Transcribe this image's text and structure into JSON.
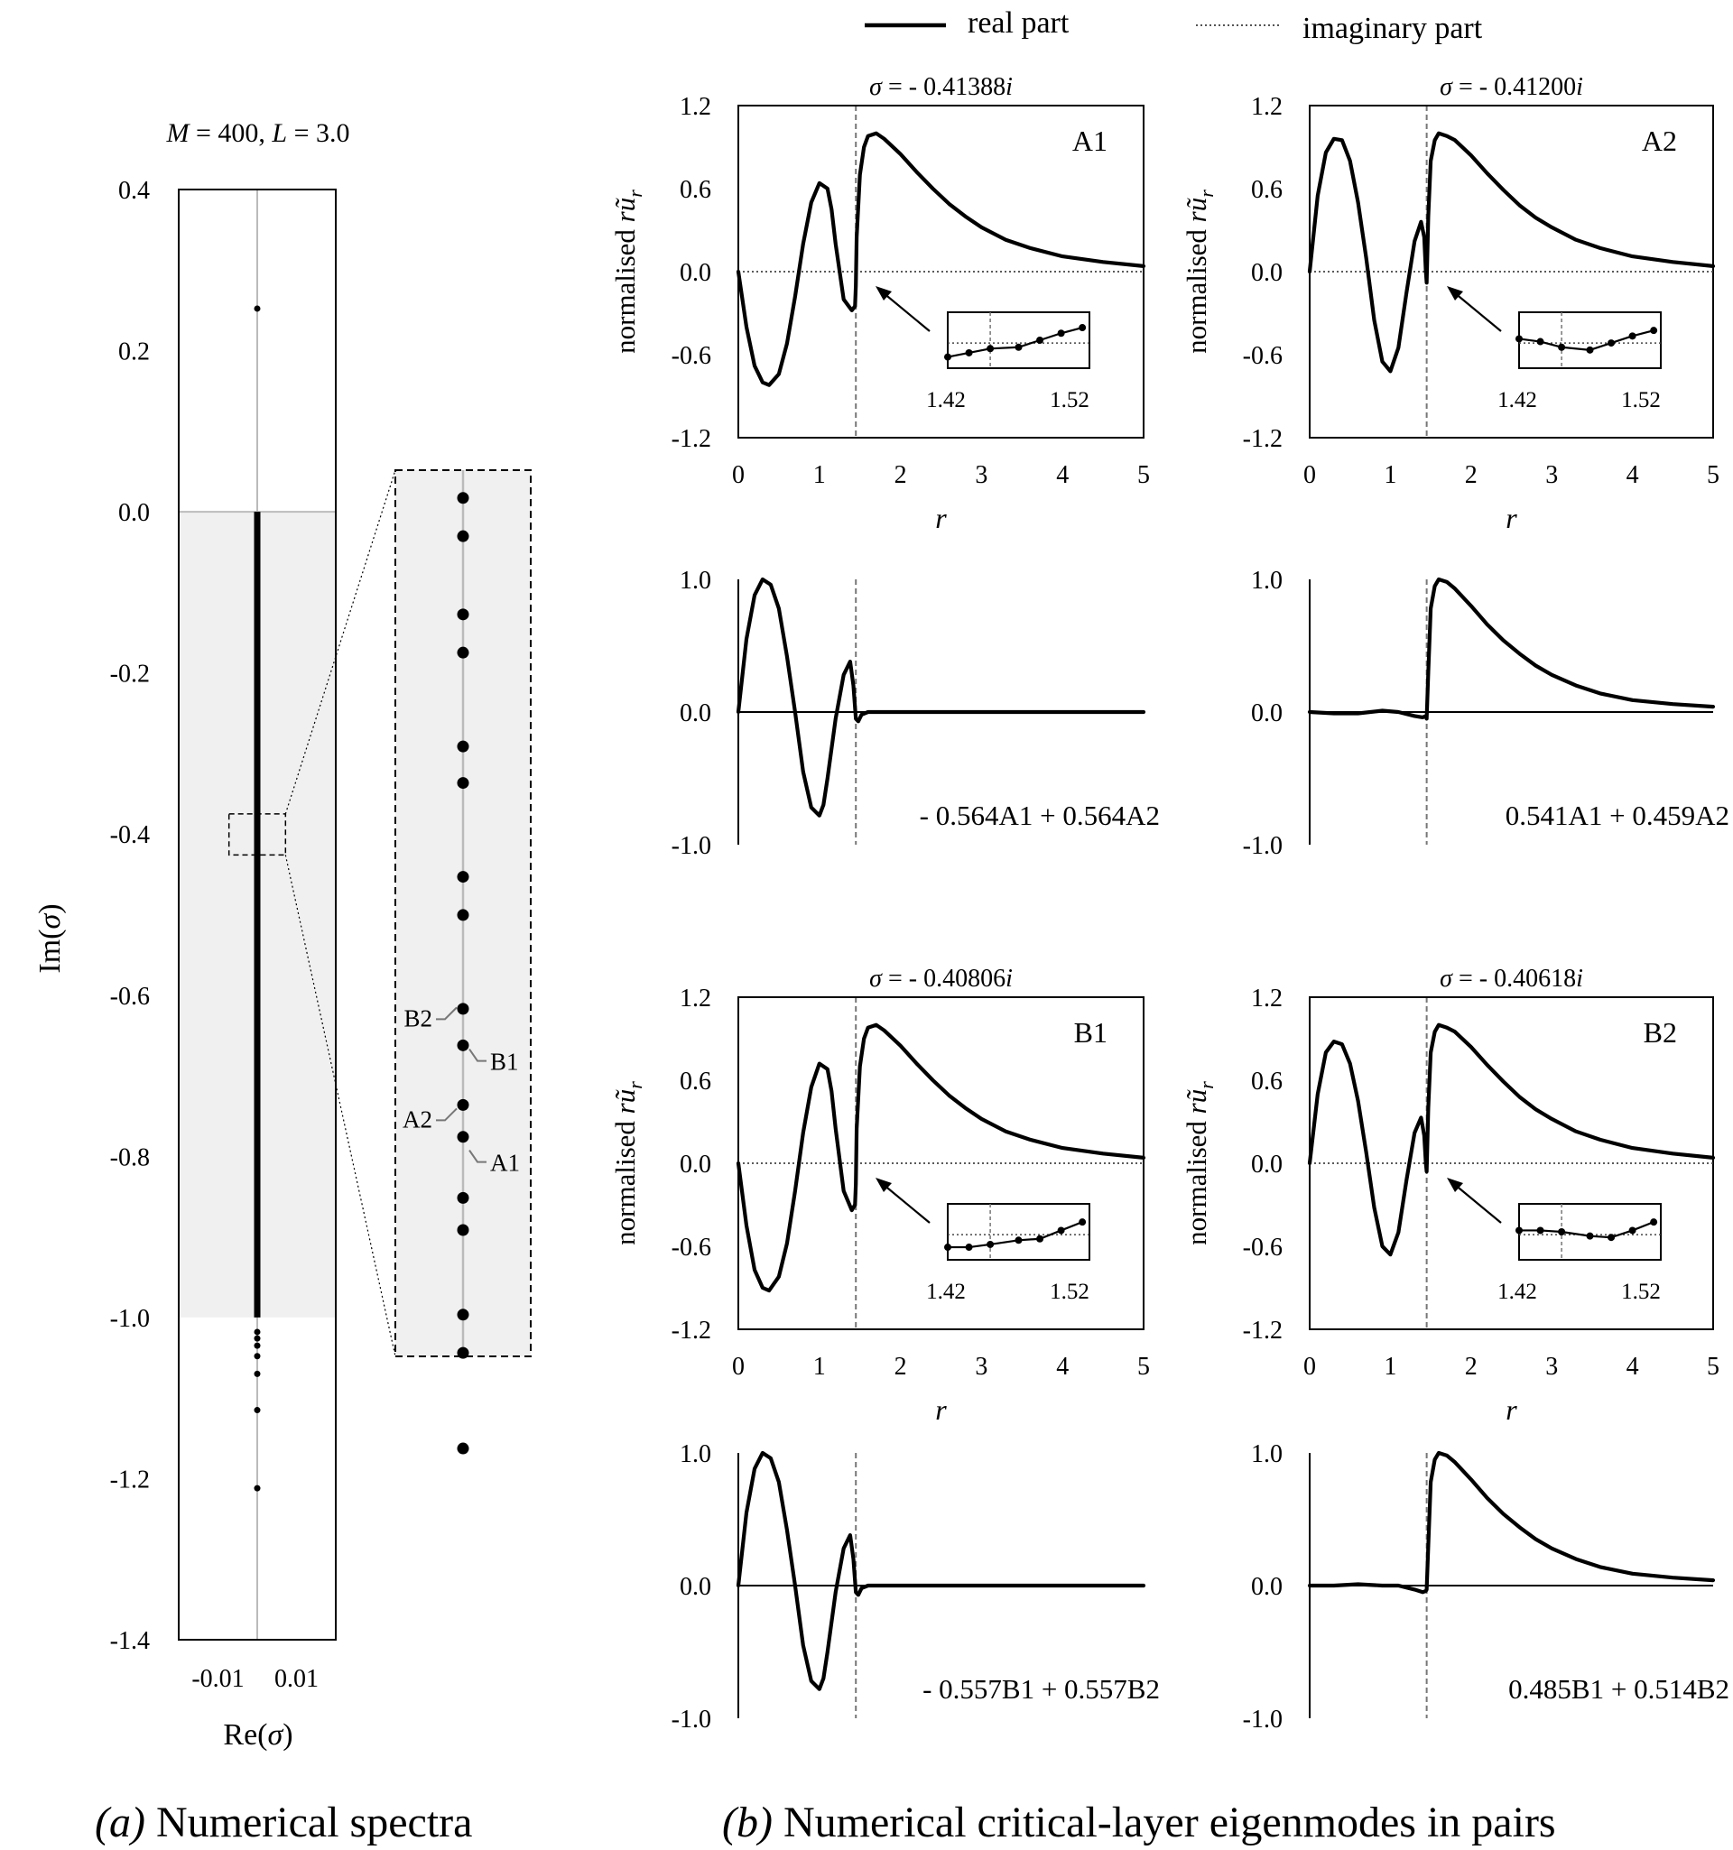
{
  "figure": {
    "legend": {
      "real_label": "real part",
      "imag_label": "imaginary part"
    },
    "caption_a": {
      "tag": "(a)",
      "text": " Numerical spectra"
    },
    "caption_b": {
      "tag": "(b)",
      "text": " Numerical critical-layer eigenmodes in pairs"
    }
  },
  "chart_data": [
    {
      "id": "spectrum",
      "type": "scatter",
      "title": "M = 400, L = 3.0",
      "title_parts": {
        "m": "M",
        "m_val": " = 400, ",
        "l": "L",
        "l_val": " = 3.0"
      },
      "xlabel": "Re(σ)",
      "ylabel": "Im(σ)",
      "xlim": [
        -0.02,
        0.02
      ],
      "ylim": [
        -1.4,
        0.4
      ],
      "yticks": [
        "0.4",
        "0.2",
        "0.0",
        "-0.2",
        "-0.4",
        "-0.6",
        "-0.8",
        "-1.0",
        "-1.2",
        "-1.4"
      ],
      "xticks": [
        "-0.01",
        "0.01"
      ],
      "shaded_band": [
        -1.0,
        0.0
      ],
      "continuum": {
        "re": 0.0,
        "from": -1.0,
        "to": 0.0
      },
      "isolated_points": [
        {
          "re": 0.0,
          "im": 0.2522
        },
        {
          "re": 0.0,
          "im": -1.018
        },
        {
          "re": 0.0,
          "im": -1.026
        },
        {
          "re": 0.0,
          "im": -1.035
        },
        {
          "re": 0.0,
          "im": -1.048
        },
        {
          "re": 0.0,
          "im": -1.07
        },
        {
          "re": 0.0,
          "im": -1.115
        },
        {
          "re": 0.0,
          "im": -1.212
        }
      ],
      "zoom_box": {
        "re": [
          -0.0072,
          0.0072
        ],
        "im": [
          -0.426,
          -0.375
        ]
      },
      "inset": {
        "points_im": [
          -0.3766,
          -0.3788,
          -0.3833,
          -0.3855,
          -0.3909,
          -0.393,
          -0.3984,
          -0.4006,
          -0.406,
          -0.4081,
          -0.41153,
          -0.41337,
          -0.41688,
          -0.41873,
          -0.4236,
          -0.4258,
          -0.4313
        ],
        "labels": [
          {
            "text": "B2",
            "im": -0.40618,
            "side": "left"
          },
          {
            "text": "B1",
            "im": -0.40806,
            "side": "right"
          },
          {
            "text": "A2",
            "im": -0.412,
            "side": "left"
          },
          {
            "text": "A1",
            "im": -0.41388,
            "side": "right"
          }
        ]
      }
    },
    {
      "id": "A1",
      "type": "line",
      "tag": "A1",
      "sigma_label": "σ = - 0.41388i",
      "sigma_parts": {
        "sym": "σ",
        "mid": " = - 0.41388",
        "unit": "i"
      },
      "ylabel": "normalised rũ",
      "ylabel_parts": {
        "pre": "normalised ",
        "var": "rũ",
        "sub": "r"
      },
      "xlabel": "r",
      "xlim": [
        0,
        5
      ],
      "ylim": [
        -1.2,
        1.2
      ],
      "xticks": [
        "0",
        "1",
        "2",
        "3",
        "4",
        "5"
      ],
      "yticks": [
        "1.2",
        "0.6",
        "0.0",
        "-0.6",
        "-1.2"
      ],
      "critical_r": 1.45,
      "series": [
        {
          "name": "real part",
          "x": [
            0,
            0.1,
            0.2,
            0.3,
            0.38,
            0.5,
            0.6,
            0.7,
            0.8,
            0.9,
            1.0,
            1.1,
            1.15,
            1.2,
            1.3,
            1.4,
            1.44,
            1.45,
            1.46,
            1.5,
            1.55,
            1.6,
            1.7,
            1.8,
            2.0,
            2.2,
            2.4,
            2.6,
            2.8,
            3.0,
            3.3,
            3.6,
            4.0,
            4.5,
            5.0
          ],
          "y": [
            0,
            -0.4,
            -0.68,
            -0.8,
            -0.82,
            -0.74,
            -0.52,
            -0.18,
            0.2,
            0.5,
            0.64,
            0.6,
            0.45,
            0.2,
            -0.2,
            -0.28,
            -0.25,
            -0.1,
            0.25,
            0.7,
            0.9,
            0.98,
            1.0,
            0.96,
            0.85,
            0.72,
            0.6,
            0.49,
            0.4,
            0.32,
            0.23,
            0.17,
            0.11,
            0.07,
            0.04
          ]
        },
        {
          "name": "imaginary part",
          "x": [
            0,
            5
          ],
          "y": [
            0,
            0
          ]
        }
      ],
      "inset": {
        "xlabels": [
          "1.42",
          "1.52"
        ],
        "real_points": [
          [
            1.42,
            -0.6
          ],
          [
            1.435,
            -0.45
          ],
          [
            1.45,
            -0.3
          ],
          [
            1.47,
            -0.25
          ],
          [
            1.485,
            0.0
          ],
          [
            1.5,
            0.25
          ],
          [
            1.515,
            0.45
          ]
        ],
        "real_ylim": [
          -1,
          1
        ]
      }
    },
    {
      "id": "A2",
      "type": "line",
      "tag": "A2",
      "sigma_label": "σ = - 0.41200i",
      "sigma_parts": {
        "sym": "σ",
        "mid": " = - 0.41200",
        "unit": "i"
      },
      "ylabel": "normalised rũ",
      "ylabel_parts": {
        "pre": "normalised ",
        "var": "rũ",
        "sub": "r"
      },
      "xlabel": "r",
      "xlim": [
        0,
        5
      ],
      "ylim": [
        -1.2,
        1.2
      ],
      "xticks": [
        "0",
        "1",
        "2",
        "3",
        "4",
        "5"
      ],
      "yticks": [
        "1.2",
        "0.6",
        "0.0",
        "-0.6",
        "-1.2"
      ],
      "critical_r": 1.45,
      "series": [
        {
          "name": "real part",
          "x": [
            0,
            0.1,
            0.2,
            0.3,
            0.4,
            0.5,
            0.6,
            0.7,
            0.8,
            0.9,
            1.0,
            1.1,
            1.2,
            1.3,
            1.38,
            1.42,
            1.44,
            1.45,
            1.47,
            1.5,
            1.55,
            1.6,
            1.7,
            1.8,
            2.0,
            2.2,
            2.4,
            2.6,
            2.8,
            3.0,
            3.3,
            3.6,
            4.0,
            4.5,
            5.0
          ],
          "y": [
            0,
            0.55,
            0.86,
            0.96,
            0.95,
            0.8,
            0.5,
            0.1,
            -0.35,
            -0.65,
            -0.72,
            -0.55,
            -0.15,
            0.22,
            0.36,
            0.25,
            0.0,
            -0.08,
            0.4,
            0.8,
            0.95,
            1.0,
            0.98,
            0.95,
            0.84,
            0.71,
            0.59,
            0.48,
            0.39,
            0.32,
            0.23,
            0.17,
            0.11,
            0.07,
            0.04
          ]
        },
        {
          "name": "imaginary part",
          "x": [
            0,
            5
          ],
          "y": [
            0,
            0
          ]
        }
      ],
      "inset": {
        "xlabels": [
          "1.42",
          "1.52"
        ],
        "real_points": [
          [
            1.42,
            0.05
          ],
          [
            1.435,
            -0.05
          ],
          [
            1.45,
            -0.25
          ],
          [
            1.47,
            -0.35
          ],
          [
            1.485,
            -0.1
          ],
          [
            1.5,
            0.15
          ],
          [
            1.515,
            0.35
          ]
        ],
        "real_ylim": [
          -1,
          1
        ]
      }
    },
    {
      "id": "A-comb-1",
      "type": "line",
      "label": "- 0.564A1 + 0.564A2",
      "xlim": [
        0,
        5
      ],
      "ylim": [
        -1.0,
        1.0
      ],
      "yticks": [
        "1.0",
        "0.0",
        "-1.0"
      ],
      "critical_r": 1.45,
      "series": [
        {
          "name": "real part",
          "x": [
            0,
            0.1,
            0.2,
            0.3,
            0.4,
            0.5,
            0.6,
            0.7,
            0.8,
            0.9,
            1.0,
            1.05,
            1.1,
            1.2,
            1.3,
            1.38,
            1.42,
            1.45,
            1.48,
            1.52,
            1.6,
            2.0,
            5.0
          ],
          "y": [
            0,
            0.55,
            0.88,
            1.0,
            0.96,
            0.78,
            0.42,
            0.0,
            -0.45,
            -0.72,
            -0.78,
            -0.7,
            -0.5,
            -0.05,
            0.28,
            0.38,
            0.2,
            -0.05,
            -0.07,
            -0.02,
            0.0,
            0.0,
            0.0
          ]
        }
      ]
    },
    {
      "id": "A-comb-2",
      "type": "line",
      "label": "0.541A1 + 0.459A2",
      "xlim": [
        0,
        5
      ],
      "ylim": [
        -1.0,
        1.0
      ],
      "yticks": [
        "1.0",
        "0.0",
        "-1.0"
      ],
      "critical_r": 1.45,
      "series": [
        {
          "name": "real part",
          "x": [
            0,
            0.3,
            0.6,
            0.9,
            1.1,
            1.3,
            1.4,
            1.44,
            1.45,
            1.47,
            1.5,
            1.55,
            1.6,
            1.7,
            1.8,
            2.0,
            2.2,
            2.4,
            2.6,
            2.8,
            3.0,
            3.3,
            3.6,
            4.0,
            4.5,
            5.0
          ],
          "y": [
            0,
            -0.01,
            -0.01,
            0.01,
            0.0,
            -0.03,
            -0.04,
            -0.03,
            -0.05,
            0.3,
            0.78,
            0.95,
            1.0,
            0.98,
            0.93,
            0.8,
            0.66,
            0.54,
            0.44,
            0.35,
            0.28,
            0.2,
            0.14,
            0.09,
            0.06,
            0.04
          ]
        }
      ]
    },
    {
      "id": "B1",
      "type": "line",
      "tag": "B1",
      "sigma_label": "σ = - 0.40806i",
      "sigma_parts": {
        "sym": "σ",
        "mid": " = - 0.40806",
        "unit": "i"
      },
      "ylabel": "normalised rũ",
      "ylabel_parts": {
        "pre": "normalised ",
        "var": "rũ",
        "sub": "r"
      },
      "xlabel": "r",
      "xlim": [
        0,
        5
      ],
      "ylim": [
        -1.2,
        1.2
      ],
      "xticks": [
        "0",
        "1",
        "2",
        "3",
        "4",
        "5"
      ],
      "yticks": [
        "1.2",
        "0.6",
        "0.0",
        "-0.6",
        "-1.2"
      ],
      "critical_r": 1.45,
      "series": [
        {
          "name": "real part",
          "x": [
            0,
            0.1,
            0.2,
            0.3,
            0.38,
            0.5,
            0.6,
            0.7,
            0.8,
            0.9,
            1.0,
            1.1,
            1.15,
            1.2,
            1.3,
            1.4,
            1.44,
            1.45,
            1.46,
            1.5,
            1.55,
            1.6,
            1.7,
            1.8,
            2.0,
            2.2,
            2.4,
            2.6,
            2.8,
            3.0,
            3.3,
            3.6,
            4.0,
            4.5,
            5.0
          ],
          "y": [
            0,
            -0.45,
            -0.77,
            -0.9,
            -0.92,
            -0.82,
            -0.58,
            -0.2,
            0.22,
            0.55,
            0.72,
            0.68,
            0.52,
            0.25,
            -0.2,
            -0.34,
            -0.3,
            -0.15,
            0.25,
            0.7,
            0.9,
            0.98,
            1.0,
            0.96,
            0.85,
            0.72,
            0.6,
            0.49,
            0.4,
            0.32,
            0.23,
            0.17,
            0.11,
            0.07,
            0.04
          ]
        },
        {
          "name": "imaginary part",
          "x": [
            0,
            5
          ],
          "y": [
            0,
            0
          ]
        }
      ],
      "inset": {
        "xlabels": [
          "1.42",
          "1.52"
        ],
        "real_points": [
          [
            1.42,
            -0.55
          ],
          [
            1.435,
            -0.55
          ],
          [
            1.45,
            -0.45
          ],
          [
            1.47,
            -0.3
          ],
          [
            1.485,
            -0.25
          ],
          [
            1.5,
            0.05
          ],
          [
            1.515,
            0.35
          ]
        ],
        "real_ylim": [
          -1,
          1
        ]
      }
    },
    {
      "id": "B2",
      "type": "line",
      "tag": "B2",
      "sigma_label": "σ = - 0.40618i",
      "sigma_parts": {
        "sym": "σ",
        "mid": " = - 0.40618",
        "unit": "i"
      },
      "ylabel": "normalised rũ",
      "ylabel_parts": {
        "pre": "normalised ",
        "var": "rũ",
        "sub": "r"
      },
      "xlabel": "r",
      "xlim": [
        0,
        5
      ],
      "ylim": [
        -1.2,
        1.2
      ],
      "xticks": [
        "0",
        "1",
        "2",
        "3",
        "4",
        "5"
      ],
      "yticks": [
        "1.2",
        "0.6",
        "0.0",
        "-0.6",
        "-1.2"
      ],
      "critical_r": 1.45,
      "series": [
        {
          "name": "real part",
          "x": [
            0,
            0.1,
            0.2,
            0.3,
            0.4,
            0.5,
            0.6,
            0.7,
            0.8,
            0.9,
            1.0,
            1.1,
            1.2,
            1.3,
            1.38,
            1.42,
            1.44,
            1.45,
            1.47,
            1.5,
            1.55,
            1.6,
            1.7,
            1.8,
            2.0,
            2.2,
            2.4,
            2.6,
            2.8,
            3.0,
            3.3,
            3.6,
            4.0,
            4.5,
            5.0
          ],
          "y": [
            0,
            0.5,
            0.8,
            0.88,
            0.86,
            0.72,
            0.45,
            0.08,
            -0.32,
            -0.6,
            -0.66,
            -0.5,
            -0.12,
            0.22,
            0.33,
            0.2,
            0.0,
            -0.06,
            0.4,
            0.8,
            0.95,
            1.0,
            0.98,
            0.95,
            0.84,
            0.71,
            0.59,
            0.48,
            0.39,
            0.32,
            0.23,
            0.17,
            0.11,
            0.07,
            0.04
          ]
        },
        {
          "name": "imaginary part",
          "x": [
            0,
            5
          ],
          "y": [
            0,
            0
          ]
        }
      ],
      "inset": {
        "xlabels": [
          "1.42",
          "1.52"
        ],
        "real_points": [
          [
            1.42,
            0.05
          ],
          [
            1.435,
            0.05
          ],
          [
            1.45,
            0.0
          ],
          [
            1.47,
            -0.15
          ],
          [
            1.485,
            -0.2
          ],
          [
            1.5,
            0.05
          ],
          [
            1.515,
            0.35
          ]
        ],
        "real_ylim": [
          -1,
          1
        ]
      }
    },
    {
      "id": "B-comb-1",
      "type": "line",
      "label": "- 0.557B1 + 0.557B2",
      "xlim": [
        0,
        5
      ],
      "ylim": [
        -1.0,
        1.0
      ],
      "yticks": [
        "1.0",
        "0.0",
        "-1.0"
      ],
      "critical_r": 1.45,
      "series": [
        {
          "name": "real part",
          "x": [
            0,
            0.1,
            0.2,
            0.3,
            0.4,
            0.5,
            0.6,
            0.7,
            0.8,
            0.9,
            1.0,
            1.05,
            1.1,
            1.2,
            1.3,
            1.38,
            1.42,
            1.45,
            1.48,
            1.52,
            1.6,
            2.0,
            5.0
          ],
          "y": [
            0,
            0.55,
            0.88,
            1.0,
            0.96,
            0.78,
            0.42,
            0.0,
            -0.45,
            -0.72,
            -0.78,
            -0.7,
            -0.5,
            -0.05,
            0.28,
            0.38,
            0.2,
            -0.05,
            -0.07,
            -0.02,
            0.0,
            0.0,
            0.0
          ]
        }
      ]
    },
    {
      "id": "B-comb-2",
      "type": "line",
      "label": "0.485B1 + 0.514B2",
      "xlim": [
        0,
        5
      ],
      "ylim": [
        -1.0,
        1.0
      ],
      "yticks": [
        "1.0",
        "0.0",
        "-1.0"
      ],
      "critical_r": 1.45,
      "series": [
        {
          "name": "real part",
          "x": [
            0,
            0.3,
            0.6,
            0.9,
            1.1,
            1.3,
            1.4,
            1.44,
            1.45,
            1.47,
            1.5,
            1.55,
            1.6,
            1.7,
            1.8,
            2.0,
            2.2,
            2.4,
            2.6,
            2.8,
            3.0,
            3.3,
            3.6,
            4.0,
            4.5,
            5.0
          ],
          "y": [
            0,
            0.0,
            0.01,
            0.0,
            0.0,
            -0.03,
            -0.05,
            -0.04,
            -0.03,
            0.3,
            0.78,
            0.95,
            1.0,
            0.98,
            0.93,
            0.8,
            0.66,
            0.54,
            0.44,
            0.35,
            0.28,
            0.2,
            0.14,
            0.09,
            0.06,
            0.04
          ]
        }
      ]
    }
  ]
}
